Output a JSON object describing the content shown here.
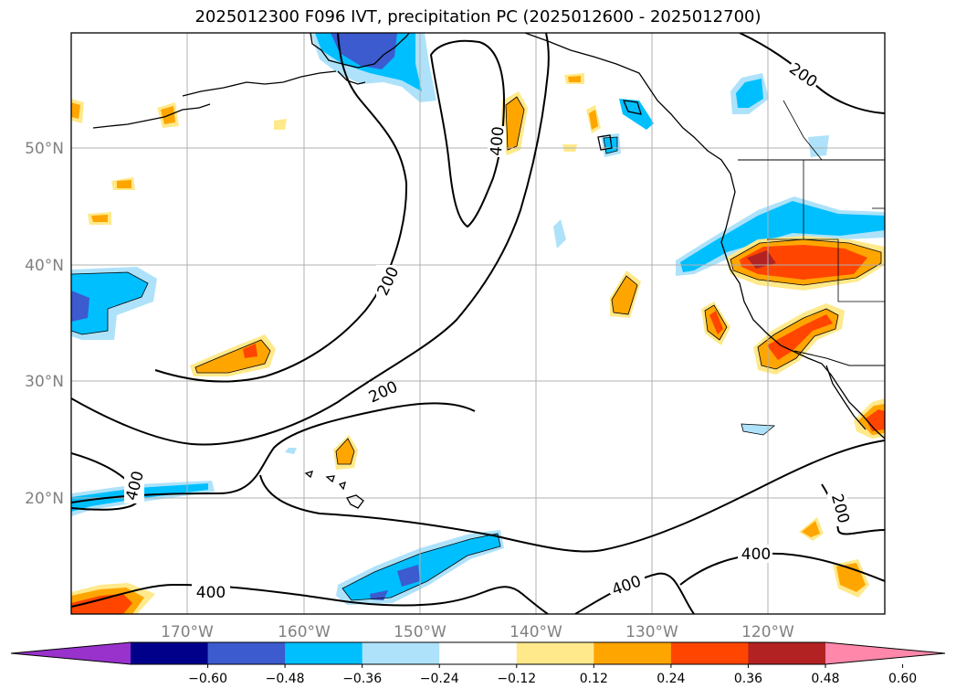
{
  "title": "2025012300 F096 IVT, precipitation PC (2025012600 - 2025012700)",
  "latitude_labels": [
    "50°N",
    "40°N",
    "30°N",
    "20°N"
  ],
  "longitude_labels": [
    "170°W",
    "160°W",
    "150°W",
    "140°W",
    "130°W",
    "120°W"
  ],
  "contour_labels": {
    "c200_ne": "200",
    "c400_north": "400",
    "c200_mid": "200",
    "c200_south": "200",
    "c400_west": "400",
    "c200_east": "200",
    "c400_se": "400",
    "c400_south": "400",
    "c400_sw": "400"
  },
  "colorbar": {
    "ticks": [
      "−0.60",
      "−0.48",
      "−0.36",
      "−0.24",
      "−0.12",
      "0.12",
      "0.24",
      "0.36",
      "0.48",
      "0.60"
    ],
    "colors": [
      "#9932cc",
      "#00008b",
      "#3b5bcf",
      "#00bfff",
      "#aee2fa",
      "#ffffff",
      "#ffe98a",
      "#ffa500",
      "#ff4500",
      "#b22222",
      "#ff88aa"
    ]
  },
  "field_colors": {
    "pos_weak": "#ffe98a",
    "pos_mid": "#ffa500",
    "pos_strong": "#ff4500",
    "pos_very_strong": "#b22222",
    "neg_weak": "#aee2fa",
    "neg_mid": "#00bfff",
    "neg_strong": "#3b5bcf"
  }
}
